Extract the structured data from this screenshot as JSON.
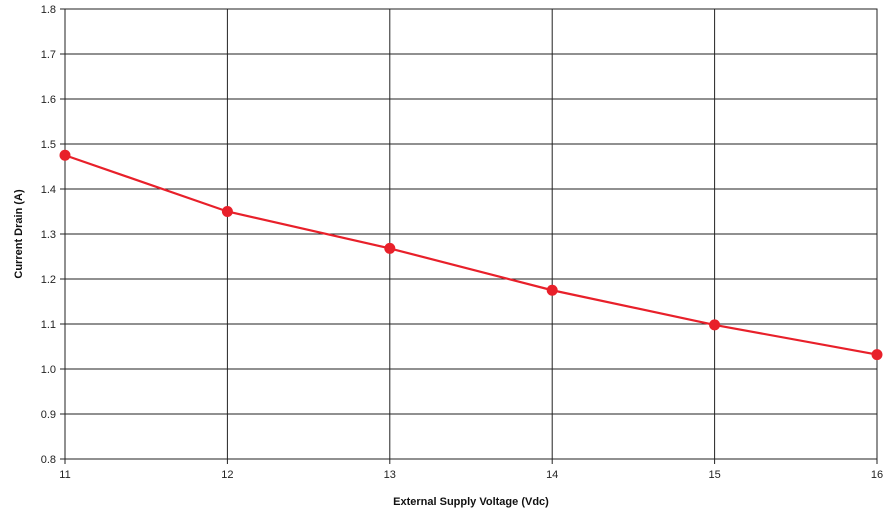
{
  "chart_data": {
    "type": "line",
    "xlabel": "External Supply Voltage (Vdc)",
    "ylabel": "Current Drain (A)",
    "x": [
      11,
      12,
      13,
      14,
      15,
      16
    ],
    "xlim": [
      11,
      16
    ],
    "ylim": [
      0.8,
      1.8
    ],
    "xticks": [
      "11",
      "12",
      "13",
      "14",
      "15",
      "16"
    ],
    "yticks": [
      "0.8",
      "0.9",
      "1.0",
      "1.1",
      "1.2",
      "1.3",
      "1.4",
      "1.5",
      "1.6",
      "1.7",
      "1.8"
    ],
    "grid": true,
    "series": [
      {
        "values": [
          1.475,
          1.35,
          1.268,
          1.175,
          1.098,
          1.032
        ],
        "color": "#e8202a"
      }
    ]
  }
}
